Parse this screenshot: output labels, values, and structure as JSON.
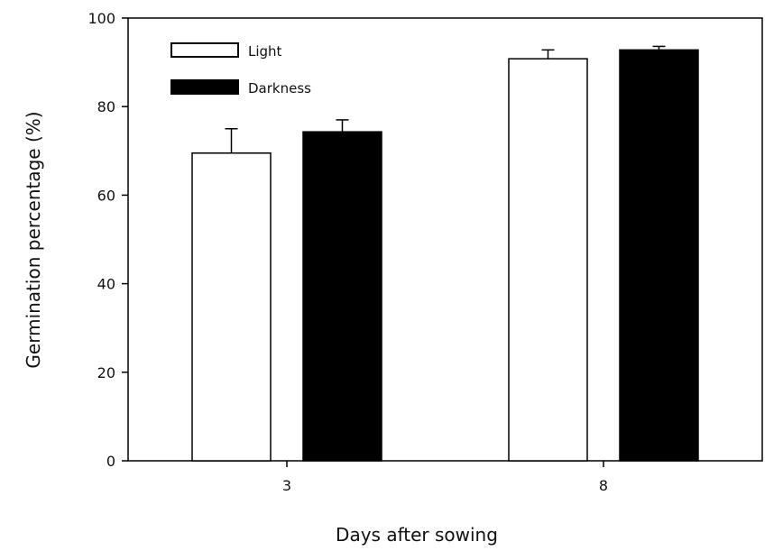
{
  "chart_data": {
    "type": "bar",
    "xlabel": "Days after sowing",
    "ylabel": "Germination percentage (%)",
    "ylim": [
      0,
      100
    ],
    "yticks": [
      0,
      20,
      40,
      60,
      80,
      100
    ],
    "categories": [
      "3",
      "8"
    ],
    "series": [
      {
        "name": "Light",
        "values": [
          69.5,
          90.8
        ],
        "errors": [
          5.5,
          2.0
        ],
        "color": "#ffffff"
      },
      {
        "name": "Darkness",
        "values": [
          74.3,
          92.8
        ],
        "errors": [
          2.7,
          0.8
        ],
        "color": "#000000"
      }
    ],
    "legend_position": "top-left",
    "grid": false
  }
}
